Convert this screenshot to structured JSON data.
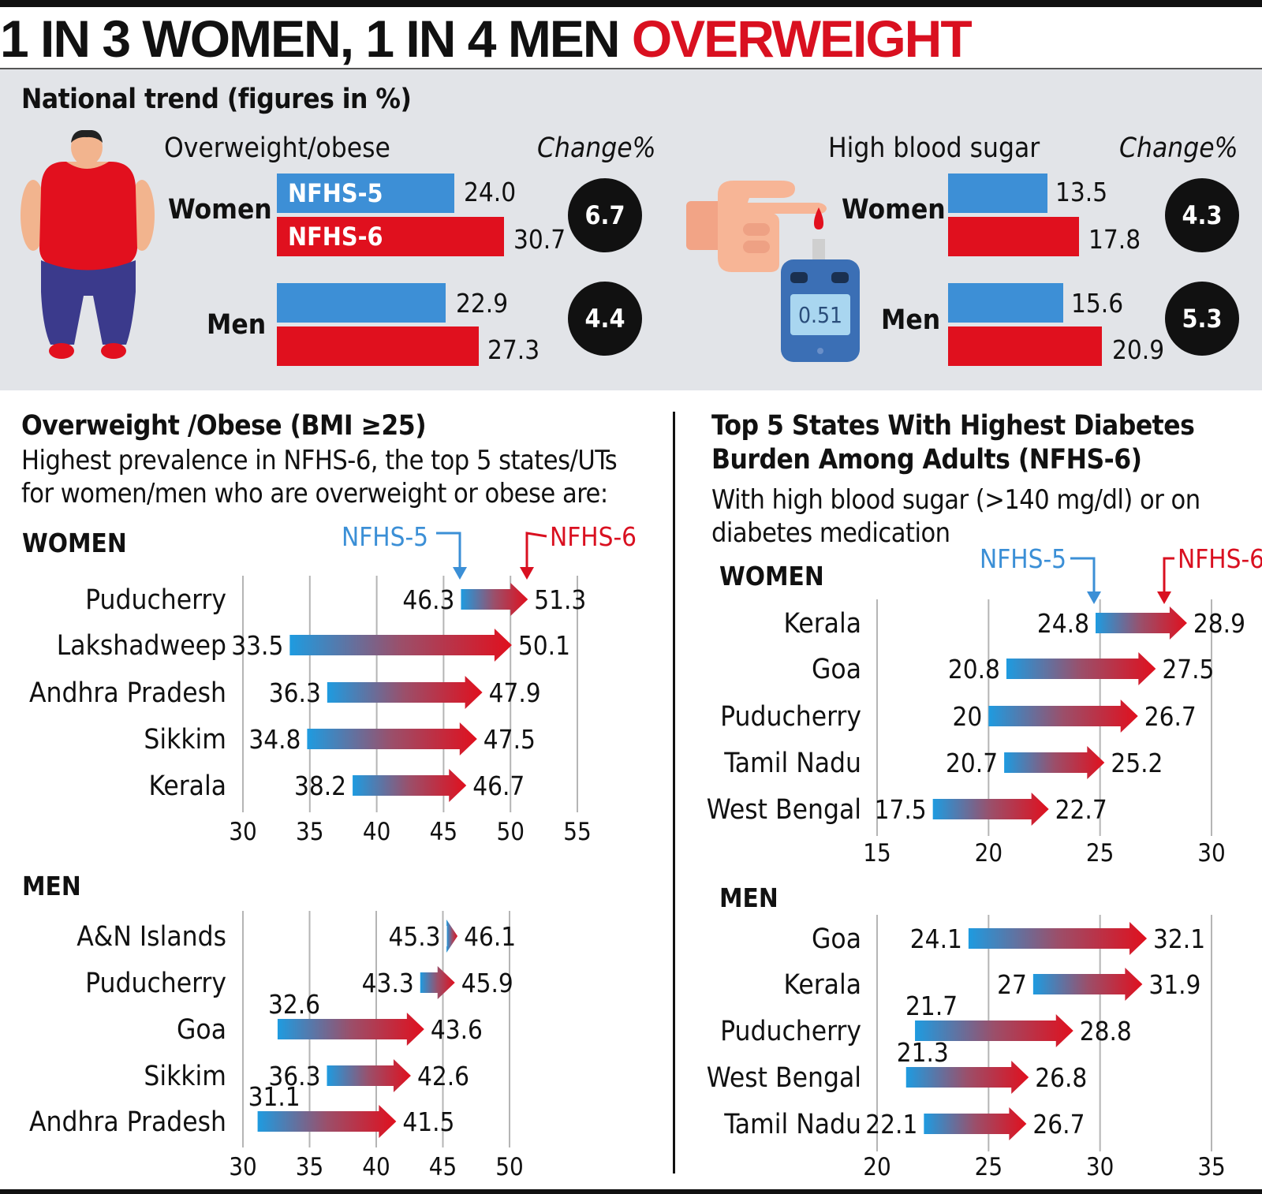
{
  "headline": {
    "black": "1 IN 3 WOMEN, 1 IN 4 MEN",
    "red": "OVERWEIGHT"
  },
  "national": {
    "title": "National trend (figures in %)",
    "change_label": "Change%",
    "legend": {
      "nfhs5": "NFHS-5",
      "nfhs6": "NFHS-6"
    },
    "overweight": {
      "title": "Overweight/obese",
      "women": {
        "label": "Women",
        "nfhs5": "24.0",
        "nfhs6": "30.7",
        "change": "6.7"
      },
      "men": {
        "label": "Men",
        "nfhs5": "22.9",
        "nfhs6": "27.3",
        "change": "4.4"
      }
    },
    "sugar": {
      "title": "High blood sugar",
      "meter_reading": "0.51",
      "women": {
        "label": "Women",
        "nfhs5": "13.5",
        "nfhs6": "17.8",
        "change": "4.3"
      },
      "men": {
        "label": "Men",
        "nfhs5": "15.6",
        "nfhs6": "20.9",
        "change": "5.3"
      }
    }
  },
  "obese_section": {
    "title": "Overweight /Obese (BMI ≥25)",
    "subtitle_line1": "Highest prevalence in NFHS-6, the top 5 states/UTs",
    "subtitle_line2": "for women/men who are overweight or obese are:"
  },
  "diabetes_section": {
    "title_line1": "Top 5 States With Highest Diabetes",
    "title_line2": "Burden Among Adults (NFHS-6)",
    "subtitle_line1": "With high blood sugar (>140 mg/dl) or on",
    "subtitle_line2": "diabetes medication"
  },
  "colors": {
    "nfhs5": "#1e9be0",
    "nfhs6": "#e0101e",
    "panel": "#e2e4e8",
    "accent": "#d91020"
  },
  "chart_data": [
    {
      "type": "bar",
      "panel": "national",
      "title": "Overweight/obese",
      "categories": [
        "Women",
        "Men"
      ],
      "series": [
        {
          "name": "NFHS-5",
          "values": [
            24.0,
            22.9
          ]
        },
        {
          "name": "NFHS-6",
          "values": [
            30.7,
            27.3
          ]
        }
      ],
      "change": [
        6.7,
        4.4
      ]
    },
    {
      "type": "bar",
      "panel": "national",
      "title": "High blood sugar",
      "categories": [
        "Women",
        "Men"
      ],
      "series": [
        {
          "name": "NFHS-5",
          "values": [
            13.5,
            15.6
          ]
        },
        {
          "name": "NFHS-6",
          "values": [
            17.8,
            20.9
          ]
        }
      ],
      "change": [
        4.3,
        5.3
      ]
    },
    {
      "type": "bar",
      "panel": "obese",
      "group": "WOMEN",
      "legend": [
        "NFHS-5",
        "NFHS-6"
      ],
      "categories": [
        "Puducherry",
        "Lakshadweep",
        "Andhra Pradesh",
        "Sikkim",
        "Kerala"
      ],
      "series": [
        {
          "name": "NFHS-5",
          "values": [
            46.3,
            33.5,
            36.3,
            34.8,
            38.2
          ]
        },
        {
          "name": "NFHS-6",
          "values": [
            51.3,
            50.1,
            47.9,
            47.5,
            46.7
          ]
        }
      ],
      "xlim": [
        30,
        55
      ],
      "ticks": [
        30,
        35,
        40,
        45,
        50,
        55
      ]
    },
    {
      "type": "bar",
      "panel": "obese",
      "group": "MEN",
      "categories": [
        "A&N Islands",
        "Puducherry",
        "Goa",
        "Sikkim",
        "Andhra Pradesh"
      ],
      "series": [
        {
          "name": "NFHS-5",
          "values": [
            45.3,
            43.3,
            32.6,
            36.3,
            31.1
          ]
        },
        {
          "name": "NFHS-6",
          "values": [
            46.1,
            45.9,
            43.6,
            42.6,
            41.5
          ]
        }
      ],
      "xlim": [
        30,
        50
      ],
      "ticks": [
        30,
        35,
        40,
        45,
        50
      ]
    },
    {
      "type": "bar",
      "panel": "diabetes",
      "group": "WOMEN",
      "legend": [
        "NFHS-5",
        "NFHS-6"
      ],
      "categories": [
        "Kerala",
        "Goa",
        "Puducherry",
        "Tamil Nadu",
        "West Bengal"
      ],
      "series": [
        {
          "name": "NFHS-5",
          "values": [
            24.8,
            20.8,
            20,
            20.7,
            17.5
          ],
          "labels": [
            "24.8",
            "20.8",
            "20",
            "20.7",
            "17.5"
          ]
        },
        {
          "name": "NFHS-6",
          "values": [
            28.9,
            27.5,
            26.7,
            25.2,
            22.7
          ],
          "labels": [
            "28.9",
            "27.5",
            "26.7",
            "25.2",
            "22.7"
          ]
        }
      ],
      "xlim": [
        15,
        30
      ],
      "ticks": [
        15,
        20,
        25,
        30
      ]
    },
    {
      "type": "bar",
      "panel": "diabetes",
      "group": "MEN",
      "categories": [
        "Goa",
        "Kerala",
        "Puducherry",
        "West Bengal",
        "Tamil Nadu"
      ],
      "series": [
        {
          "name": "NFHS-5",
          "values": [
            24.1,
            27,
            21.7,
            21.3,
            22.1
          ],
          "labels": [
            "24.1",
            "27",
            "21.7",
            "21.3",
            "22.1"
          ]
        },
        {
          "name": "NFHS-6",
          "values": [
            32.1,
            31.9,
            28.8,
            26.8,
            26.7
          ],
          "labels": [
            "32.1",
            "31.9",
            "28.8",
            "26.8",
            "26.7"
          ]
        }
      ],
      "xlim": [
        20,
        35
      ],
      "ticks": [
        20,
        25,
        30,
        35
      ]
    }
  ]
}
